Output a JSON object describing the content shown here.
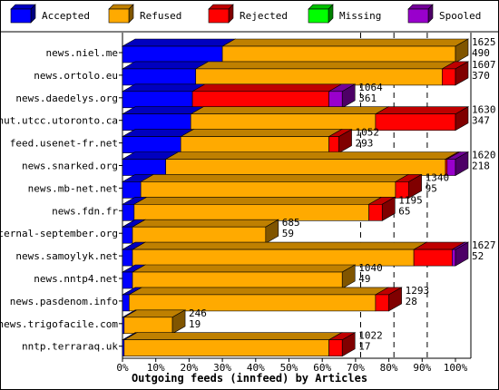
{
  "chart_data": {
    "type": "bar",
    "stacked": true,
    "orientation": "horizontal",
    "xlabel": "Outgoing feeds (innfeed) by Articles",
    "xlim": [
      0,
      100
    ],
    "ticks": [
      "0%",
      "10%",
      "20%",
      "30%",
      "40%",
      "50%",
      "60%",
      "70%",
      "80%",
      "90%",
      "100%"
    ],
    "legend_position": "top",
    "series": [
      {
        "name": "Accepted",
        "color": "#0000ff"
      },
      {
        "name": "Refused",
        "color": "#ffaa00"
      },
      {
        "name": "Rejected",
        "color": "#ff0000"
      },
      {
        "name": "Missing",
        "color": "#00ff00"
      },
      {
        "name": "Spooled",
        "color": "#9900cc"
      }
    ],
    "rows": [
      {
        "name": "news.niel.me",
        "accepted": 30,
        "refused": 70,
        "rejected": 0,
        "missing": 0,
        "spooled": 0,
        "total": "1625",
        "count": "490"
      },
      {
        "name": "news.ortolo.eu",
        "accepted": 22,
        "refused": 74,
        "rejected": 4,
        "missing": 0,
        "spooled": 0,
        "total": "1607",
        "count": "370"
      },
      {
        "name": "news.daedelys.org",
        "accepted": 21,
        "refused": 0,
        "rejected": 41,
        "missing": 0,
        "spooled": 4,
        "total": "1064",
        "count": "361"
      },
      {
        "name": "nut.utcc.utoronto.ca",
        "accepted": 20.5,
        "refused": 55.5,
        "rejected": 24,
        "missing": 0,
        "spooled": 0,
        "total": "1630",
        "count": "347"
      },
      {
        "name": "feed.usenet-fr.net",
        "accepted": 17.5,
        "refused": 44.5,
        "rejected": 3,
        "missing": 0,
        "spooled": 0,
        "total": "1052",
        "count": "293"
      },
      {
        "name": "news.snarked.org",
        "accepted": 13,
        "refused": 84,
        "rejected": 0.5,
        "missing": 0,
        "spooled": 2.5,
        "total": "1620",
        "count": "218"
      },
      {
        "name": "news.mb-net.net",
        "accepted": 5.5,
        "refused": 76.5,
        "rejected": 4,
        "missing": 0,
        "spooled": 0,
        "total": "1340",
        "count": "95"
      },
      {
        "name": "news.fdn.fr",
        "accepted": 3.5,
        "refused": 70.5,
        "rejected": 4,
        "missing": 0,
        "spooled": 0,
        "total": "1195",
        "count": "65"
      },
      {
        "name": "eternal-september.org",
        "accepted": 3,
        "refused": 40,
        "rejected": 0,
        "missing": 0,
        "spooled": 0,
        "total": "685",
        "count": "59"
      },
      {
        "name": "news.samoylyk.net",
        "accepted": 3,
        "refused": 84.5,
        "rejected": 11.5,
        "missing": 0,
        "spooled": 1,
        "total": "1627",
        "count": "52"
      },
      {
        "name": "news.nntp4.net",
        "accepted": 3,
        "refused": 63,
        "rejected": 0,
        "missing": 0,
        "spooled": 0,
        "total": "1040",
        "count": "49"
      },
      {
        "name": "news.pasdenom.info",
        "accepted": 2,
        "refused": 74,
        "rejected": 4,
        "missing": 0,
        "spooled": 0,
        "total": "1293",
        "count": "28"
      },
      {
        "name": "news.trigofacile.com",
        "accepted": 0.5,
        "refused": 14.5,
        "rejected": 0,
        "missing": 0,
        "spooled": 0,
        "total": "246",
        "count": "19"
      },
      {
        "name": "nntp.terraraq.uk",
        "accepted": 0.5,
        "refused": 61.5,
        "rejected": 4,
        "missing": 0,
        "spooled": 0,
        "total": "1022",
        "count": "17"
      }
    ]
  }
}
